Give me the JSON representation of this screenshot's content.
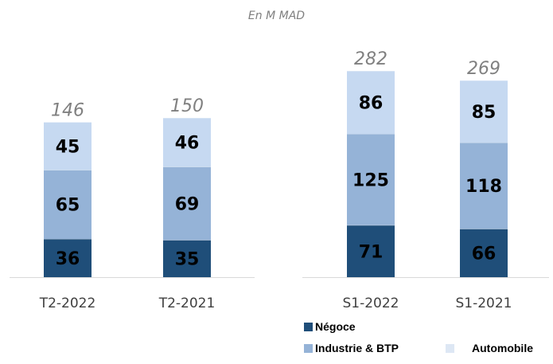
{
  "subtitle": "En M MAD",
  "colors": {
    "negoce": "#1f4e79",
    "industrie": "#95b3d7",
    "automobile": "#c6d9f1",
    "total_label": "#808080",
    "axis": "#d9d9d9"
  },
  "legend": [
    {
      "name": "Négoce",
      "color_key": "negoce"
    },
    {
      "name": "Industrie & BTP",
      "color_key": "industrie"
    },
    {
      "name": "Automobile",
      "color_key": "automobile"
    }
  ],
  "chart_data": [
    {
      "type": "bar",
      "stacked": true,
      "categories": [
        "T2-2022",
        "T2-2021"
      ],
      "series": [
        {
          "name": "Négoce",
          "values": [
            36,
            35
          ]
        },
        {
          "name": "Industrie & BTP",
          "values": [
            65,
            69
          ]
        },
        {
          "name": "Automobile",
          "values": [
            45,
            46
          ]
        }
      ],
      "totals": [
        "146",
        "150"
      ]
    },
    {
      "type": "bar",
      "stacked": true,
      "categories": [
        "S1-2022",
        "S1-2021"
      ],
      "series": [
        {
          "name": "Négoce",
          "values": [
            71,
            66
          ]
        },
        {
          "name": "Industrie & BTP",
          "values": [
            125,
            118
          ]
        },
        {
          "name": "Automobile",
          "values": [
            86,
            85
          ]
        }
      ],
      "totals": [
        "282",
        "269"
      ]
    }
  ]
}
